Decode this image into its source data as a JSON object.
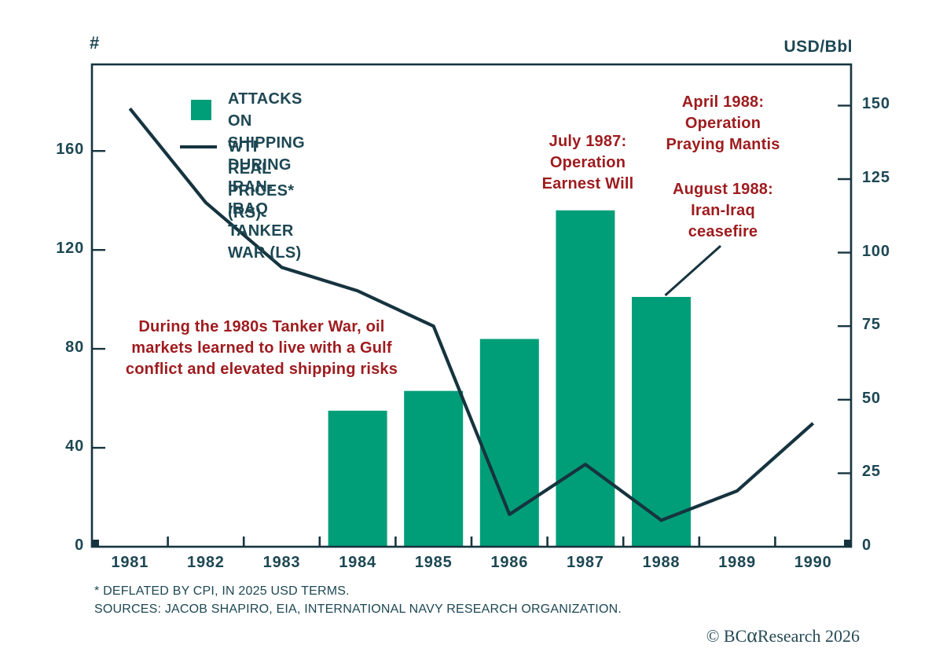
{
  "colors": {
    "bar_green": "#009e78",
    "line_dark_teal": "#16343f",
    "text_teal": "#1d4753",
    "annotation_red": "#9e1b1e",
    "background": "#ffffff"
  },
  "header": {
    "left_unit": "#",
    "right_unit": "USD/Bbl"
  },
  "legend": {
    "bar_label": "ATTACKS ON SHIPPING DURING\nIRAN-IRAQ TANKER WAR (LS)",
    "line_label": "WTI REAL PRICES* (RS)"
  },
  "annotations": {
    "tanker_note": "During the 1980s Tanker War, oil\nmarkets learned to live with a Gulf\nconflict and elevated shipping risks",
    "july_1987": "July 1987:\nOperation\nEarnest Will",
    "april_1988": "April 1988:\nOperation\nPraying Mantis",
    "august_1988": "August 1988:\nIran-Iraq\nceasefire"
  },
  "footnotes": {
    "line1": "* DEFLATED BY CPI, IN 2025 USD TERMS.",
    "line2": "SOURCES: JACOB SHAPIRO, EIA, INTERNATIONAL NAVY RESEARCH ORGANIZATION."
  },
  "copyright": {
    "prefix": "© BC",
    "alpha": "α",
    "suffix": " Research 2026"
  },
  "chart_data": {
    "type": "bar+line combo",
    "categories": [
      "1981",
      "1982",
      "1983",
      "1984",
      "1985",
      "1986",
      "1987",
      "1988",
      "1989",
      "1990"
    ],
    "series": [
      {
        "name": "ATTACKS ON SHIPPING DURING IRAN-IRAQ TANKER WAR (LS)",
        "type": "bar",
        "axis": "left",
        "color": "#009e78",
        "values": [
          null,
          null,
          null,
          55,
          63,
          84,
          136,
          101,
          null,
          null
        ]
      },
      {
        "name": "WTI REAL PRICES* (RS)",
        "type": "line",
        "axis": "right",
        "color": "#16343f",
        "values": [
          149,
          117,
          95,
          87,
          75,
          11,
          28,
          9,
          19,
          42
        ]
      }
    ],
    "left_axis": {
      "unit": "#",
      "ticks": [
        0,
        40,
        80,
        120,
        160
      ],
      "range": [
        0,
        195
      ]
    },
    "right_axis": {
      "unit": "USD/Bbl",
      "ticks": [
        0,
        25,
        50,
        75,
        100,
        125,
        150
      ],
      "range": [
        0,
        164
      ]
    },
    "grid": false,
    "legend_position": "top-left-inside"
  }
}
